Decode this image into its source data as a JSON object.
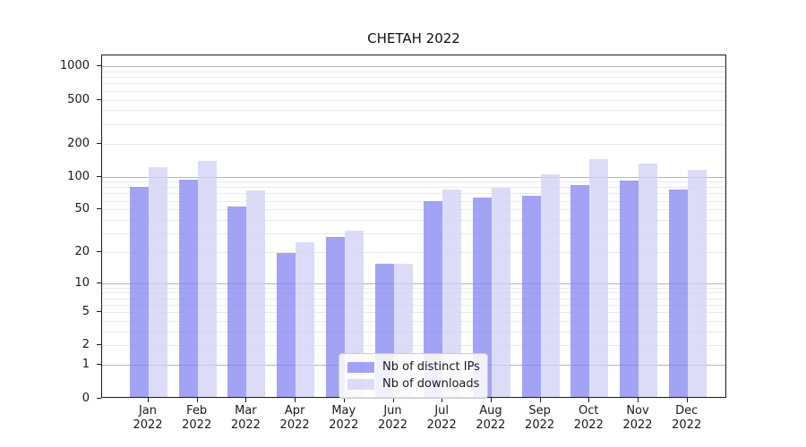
{
  "title": "CHETAH 2022",
  "chart_data": {
    "type": "bar",
    "title": "CHETAH 2022",
    "categories": [
      "Jan 2022",
      "Feb 2022",
      "Mar 2022",
      "Apr 2022",
      "May 2022",
      "Jun 2022",
      "Jul 2022",
      "Aug 2022",
      "Sep 2022",
      "Oct 2022",
      "Nov 2022",
      "Dec 2022"
    ],
    "series": [
      {
        "name": "Nb of distinct IPs",
        "color": "rgba(132,132,242,0.75)",
        "values": [
          78,
          91,
          52,
          19,
          27,
          15,
          58,
          63,
          65,
          81,
          90,
          74
        ]
      },
      {
        "name": "Nb of downloads",
        "color": "rgba(208,208,246,0.75)",
        "values": [
          118,
          135,
          73,
          24,
          31,
          15,
          74,
          77,
          103,
          140,
          128,
          112
        ]
      }
    ],
    "yscale": "log10(value+1)",
    "yticks": [
      0,
      1,
      2,
      5,
      10,
      20,
      50,
      100,
      200,
      500,
      1000
    ],
    "ylim": [
      0,
      1260
    ],
    "grid": "horizontal major + minor",
    "legend_position": "lower center inside plot"
  },
  "legend": {
    "items": [
      {
        "label": "Nb of distinct IPs",
        "color": "rgba(132,132,242,0.75)"
      },
      {
        "label": "Nb of downloads",
        "color": "rgba(208,208,246,0.75)"
      }
    ]
  },
  "colors": {
    "grid_major": "#b5b5b5",
    "grid_minor": "#eaeaea",
    "axis": "#1a1a1a",
    "background": "#ffffff"
  }
}
